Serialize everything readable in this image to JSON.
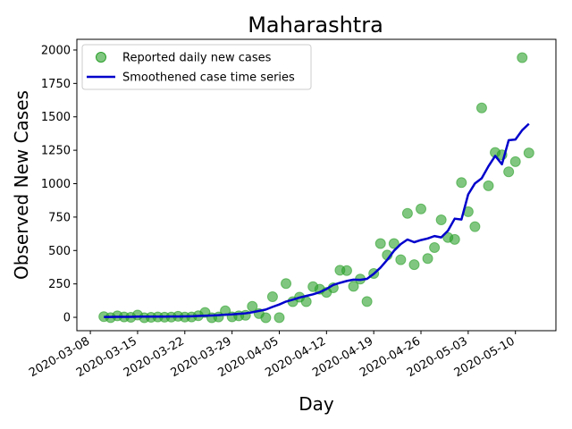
{
  "chart_data": {
    "type": "scatter",
    "title": "Maharashtra",
    "xlabel": "Day",
    "ylabel": "Observed New Cases",
    "x_type": "date",
    "xlim": [
      "2020-03-06",
      "2020-05-16"
    ],
    "ylim": [
      -100,
      2080
    ],
    "x_ticks": [
      "2020-03-08",
      "2020-03-15",
      "2020-03-22",
      "2020-03-29",
      "2020-04-05",
      "2020-04-12",
      "2020-04-19",
      "2020-04-26",
      "2020-05-03",
      "2020-05-10"
    ],
    "y_ticks": [
      0,
      250,
      500,
      750,
      1000,
      1250,
      1500,
      1750,
      2000
    ],
    "grid": false,
    "legend": {
      "position": "top-left",
      "entries": [
        "Reported daily new cases",
        "Smoothened case time series"
      ]
    },
    "series": [
      {
        "name": "Reported daily new cases",
        "kind": "scatter",
        "color": "#2ca02c",
        "points": [
          [
            "2020-03-10",
            5
          ],
          [
            "2020-03-11",
            -2
          ],
          [
            "2020-03-12",
            11
          ],
          [
            "2020-03-13",
            3
          ],
          [
            "2020-03-14",
            0
          ],
          [
            "2020-03-15",
            17
          ],
          [
            "2020-03-16",
            -3
          ],
          [
            "2020-03-17",
            0
          ],
          [
            "2020-03-18",
            3
          ],
          [
            "2020-03-19",
            1
          ],
          [
            "2020-03-20",
            2
          ],
          [
            "2020-03-21",
            8
          ],
          [
            "2020-03-22",
            2
          ],
          [
            "2020-03-23",
            3
          ],
          [
            "2020-03-24",
            12
          ],
          [
            "2020-03-25",
            36
          ],
          [
            "2020-03-26",
            -3
          ],
          [
            "2020-03-27",
            3
          ],
          [
            "2020-03-28",
            49
          ],
          [
            "2020-03-29",
            4
          ],
          [
            "2020-03-30",
            11
          ],
          [
            "2020-03-31",
            15
          ],
          [
            "2020-04-01",
            82
          ],
          [
            "2020-04-02",
            28
          ],
          [
            "2020-04-03",
            -3
          ],
          [
            "2020-04-04",
            154
          ],
          [
            "2020-04-05",
            -2
          ],
          [
            "2020-04-06",
            253
          ],
          [
            "2020-04-07",
            117
          ],
          [
            "2020-04-08",
            151
          ],
          [
            "2020-04-09",
            117
          ],
          [
            "2020-04-10",
            229
          ],
          [
            "2020-04-11",
            210
          ],
          [
            "2020-04-12",
            187
          ],
          [
            "2020-04-13",
            221
          ],
          [
            "2020-04-14",
            352
          ],
          [
            "2020-04-15",
            350
          ],
          [
            "2020-04-16",
            232
          ],
          [
            "2020-04-17",
            286
          ],
          [
            "2020-04-18",
            118
          ],
          [
            "2020-04-19",
            328
          ],
          [
            "2020-04-20",
            552
          ],
          [
            "2020-04-21",
            466
          ],
          [
            "2020-04-22",
            552
          ],
          [
            "2020-04-23",
            431
          ],
          [
            "2020-04-24",
            778
          ],
          [
            "2020-04-25",
            394
          ],
          [
            "2020-04-26",
            811
          ],
          [
            "2020-04-27",
            440
          ],
          [
            "2020-04-28",
            522
          ],
          [
            "2020-04-29",
            729
          ],
          [
            "2020-04-30",
            597
          ],
          [
            "2020-05-01",
            583
          ],
          [
            "2020-05-02",
            1008
          ],
          [
            "2020-05-03",
            790
          ],
          [
            "2020-05-04",
            678
          ],
          [
            "2020-05-05",
            1567
          ],
          [
            "2020-05-06",
            984
          ],
          [
            "2020-05-07",
            1233
          ],
          [
            "2020-05-08",
            1216
          ],
          [
            "2020-05-09",
            1089
          ],
          [
            "2020-05-10",
            1165
          ],
          [
            "2020-05-11",
            1943
          ],
          [
            "2020-05-12",
            1230
          ]
        ]
      },
      {
        "name": "Smoothened case time series",
        "kind": "line",
        "color": "#0000cc",
        "points": [
          [
            "2020-03-10",
            3
          ],
          [
            "2020-03-11",
            3
          ],
          [
            "2020-03-12",
            4
          ],
          [
            "2020-03-13",
            4
          ],
          [
            "2020-03-14",
            4
          ],
          [
            "2020-03-15",
            5
          ],
          [
            "2020-03-16",
            5
          ],
          [
            "2020-03-17",
            5
          ],
          [
            "2020-03-18",
            5
          ],
          [
            "2020-03-19",
            5
          ],
          [
            "2020-03-20",
            6
          ],
          [
            "2020-03-21",
            6
          ],
          [
            "2020-03-22",
            7
          ],
          [
            "2020-03-23",
            8
          ],
          [
            "2020-03-24",
            10
          ],
          [
            "2020-03-25",
            12
          ],
          [
            "2020-03-26",
            14
          ],
          [
            "2020-03-27",
            16
          ],
          [
            "2020-03-28",
            20
          ],
          [
            "2020-03-29",
            22
          ],
          [
            "2020-03-30",
            26
          ],
          [
            "2020-03-31",
            30
          ],
          [
            "2020-04-01",
            38
          ],
          [
            "2020-04-02",
            48
          ],
          [
            "2020-04-03",
            58
          ],
          [
            "2020-04-04",
            78
          ],
          [
            "2020-04-05",
            96
          ],
          [
            "2020-04-06",
            118
          ],
          [
            "2020-04-07",
            132
          ],
          [
            "2020-04-08",
            148
          ],
          [
            "2020-04-09",
            160
          ],
          [
            "2020-04-10",
            172
          ],
          [
            "2020-04-11",
            188
          ],
          [
            "2020-04-12",
            212
          ],
          [
            "2020-04-13",
            242
          ],
          [
            "2020-04-14",
            258
          ],
          [
            "2020-04-15",
            272
          ],
          [
            "2020-04-16",
            282
          ],
          [
            "2020-04-17",
            280
          ],
          [
            "2020-04-18",
            288
          ],
          [
            "2020-04-19",
            325
          ],
          [
            "2020-04-20",
            372
          ],
          [
            "2020-04-21",
            430
          ],
          [
            "2020-04-22",
            498
          ],
          [
            "2020-04-23",
            548
          ],
          [
            "2020-04-24",
            582
          ],
          [
            "2020-04-25",
            562
          ],
          [
            "2020-04-26",
            578
          ],
          [
            "2020-04-27",
            590
          ],
          [
            "2020-04-28",
            608
          ],
          [
            "2020-04-29",
            598
          ],
          [
            "2020-04-30",
            648
          ],
          [
            "2020-05-01",
            738
          ],
          [
            "2020-05-02",
            732
          ],
          [
            "2020-05-03",
            920
          ],
          [
            "2020-05-04",
            1002
          ],
          [
            "2020-05-05",
            1040
          ],
          [
            "2020-05-06",
            1130
          ],
          [
            "2020-05-07",
            1208
          ],
          [
            "2020-05-08",
            1145
          ],
          [
            "2020-05-09",
            1325
          ],
          [
            "2020-05-10",
            1330
          ],
          [
            "2020-05-11",
            1400
          ],
          [
            "2020-05-12",
            1448
          ]
        ]
      }
    ]
  }
}
